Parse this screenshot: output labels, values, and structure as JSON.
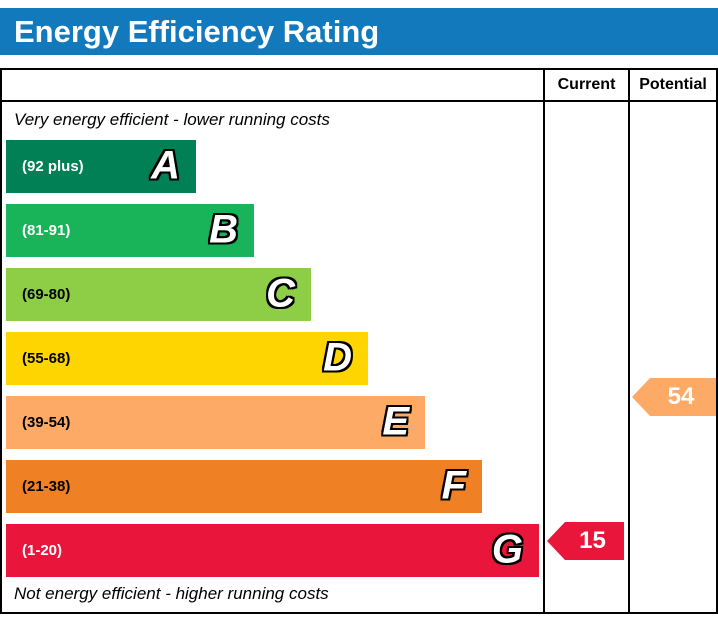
{
  "title": "Energy Efficiency Rating",
  "columns": {
    "current": "Current",
    "potential": "Potential"
  },
  "captions": {
    "top": "Very energy efficient - lower running costs",
    "bottom": "Not energy efficient - higher running costs"
  },
  "accent_color": "#1279bd",
  "chart_data": {
    "type": "bar",
    "title": "Energy Efficiency Rating",
    "bands": [
      {
        "letter": "A",
        "range": "(92 plus)",
        "min": 92,
        "max": 100,
        "color": "#008054",
        "text_color": "#ffffff"
      },
      {
        "letter": "B",
        "range": "(81-91)",
        "min": 81,
        "max": 91,
        "color": "#19b459",
        "text_color": "#ffffff"
      },
      {
        "letter": "C",
        "range": "(69-80)",
        "min": 69,
        "max": 80,
        "color": "#8dce46",
        "text_color": "#000000"
      },
      {
        "letter": "D",
        "range": "(55-68)",
        "min": 55,
        "max": 68,
        "color": "#ffd500",
        "text_color": "#000000"
      },
      {
        "letter": "E",
        "range": "(39-54)",
        "min": 39,
        "max": 54,
        "color": "#fcaa65",
        "text_color": "#000000"
      },
      {
        "letter": "F",
        "range": "(21-38)",
        "min": 21,
        "max": 38,
        "color": "#ef8023",
        "text_color": "#000000"
      },
      {
        "letter": "G",
        "range": "(1-20)",
        "min": 1,
        "max": 20,
        "color": "#e9153b",
        "text_color": "#ffffff"
      }
    ],
    "current": {
      "value": "15",
      "band": "G",
      "color": "#e9153b"
    },
    "potential": {
      "value": "54",
      "band": "E",
      "color": "#fcaa65"
    }
  }
}
